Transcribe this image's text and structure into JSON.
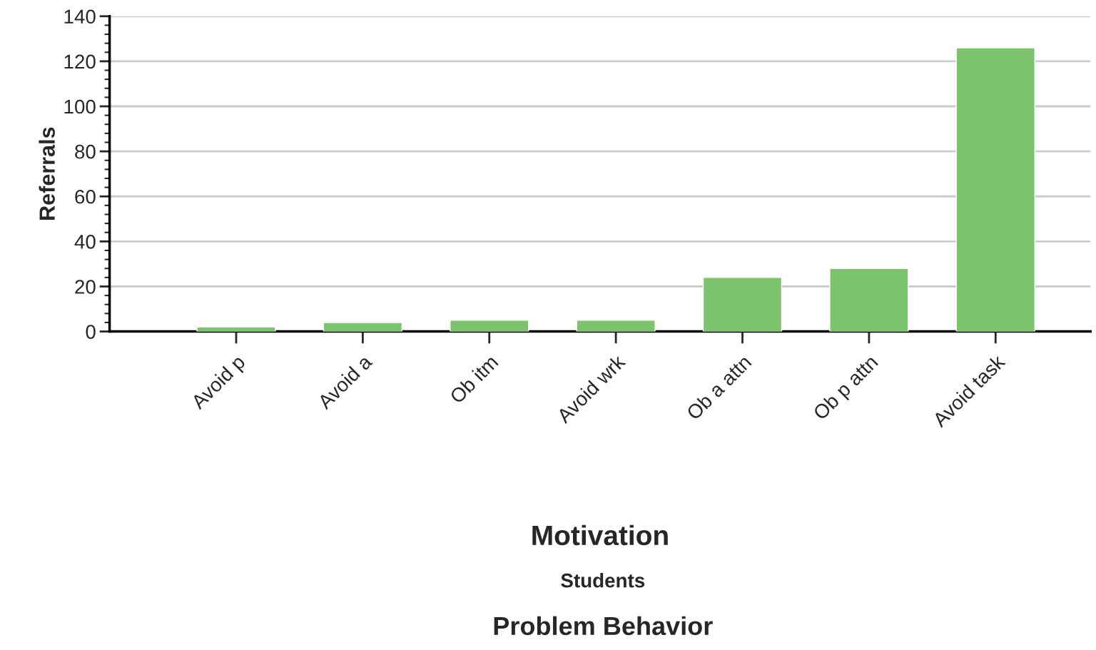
{
  "chart_data": {
    "type": "bar",
    "categories": [
      "Avoid p",
      "Avoid a",
      "Ob itm",
      "Avoid wrk",
      "Ob a attn",
      "Ob p attn",
      "Avoid task"
    ],
    "values": [
      2,
      4,
      5,
      5,
      24,
      28,
      126
    ],
    "color": "#7cc36e",
    "xlabel": "Motivation",
    "ylabel": "Referrals",
    "annotations": [
      "Students",
      "Problem Behavior"
    ],
    "ylim": [
      0,
      140
    ],
    "yticks": [
      0,
      20,
      40,
      60,
      80,
      100,
      120,
      140
    ],
    "grid": "y",
    "legend": false
  }
}
